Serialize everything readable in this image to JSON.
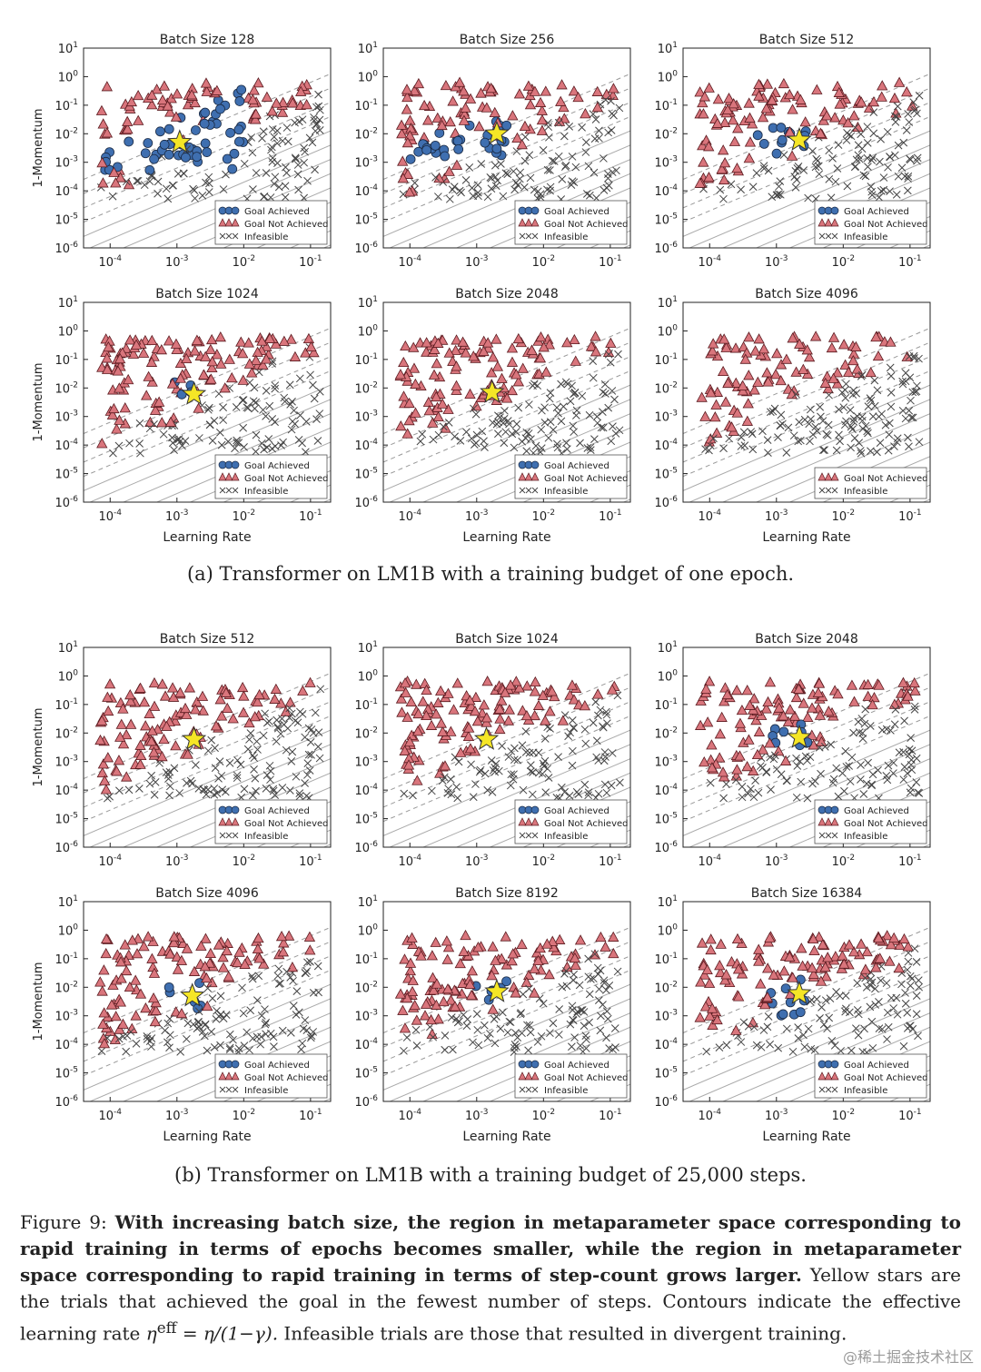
{
  "figure": {
    "caption_a": "(a) Transformer on LM1B with a training budget of one epoch.",
    "caption_b": "(b) Transformer on LM1B with a training budget of 25,000 steps.",
    "caption_label": "Figure 9:",
    "caption_bold": "With increasing batch size, the region in metaparameter space corresponding to rapid training in terms of epochs becomes smaller, while the region in metaparameter space corresponding to rapid training in terms of step-count grows larger.",
    "caption_rest1": "Yellow stars are the trials that achieved the goal in the fewest number of steps. Contours indicate the effective learning rate",
    "caption_formula": "η",
    "caption_formula_sup": "eff",
    "caption_formula_eq": "= η/(1−γ).",
    "caption_rest2": "Infeasible trials are those that resulted in divergent training.",
    "watermark": "@稀土掘金技术社区"
  },
  "chart_data": [
    {
      "type": "scatter",
      "panel": "a",
      "title": "Batch Size 128",
      "xlabel": "",
      "ylabel": "1-Momentum",
      "xscale": "log",
      "yscale": "log",
      "xlim": [
        4e-05,
        0.2
      ],
      "ylim": [
        1e-06,
        10
      ],
      "xticks": [
        "10-4",
        "10-3",
        "10-2",
        "10-1"
      ],
      "yticks": [
        "101",
        "100",
        "10-1",
        "10-2",
        "10-3",
        "10-4",
        "10-5",
        "10-6"
      ],
      "legend": [
        "Goal Achieved",
        "Goal Not Achieved",
        "Infeasible"
      ],
      "legend_loc": "lower-right",
      "goal_region": {
        "lr": [
          8e-05,
          0.01
        ],
        "mom": [
          0.0005,
          0.5
        ]
      },
      "star": {
        "lr": 0.0011,
        "mom": 0.005
      }
    },
    {
      "type": "scatter",
      "panel": "a",
      "title": "Batch Size 256",
      "xlabel": "",
      "ylabel": "",
      "xscale": "log",
      "yscale": "log",
      "xlim": [
        4e-05,
        0.2
      ],
      "ylim": [
        1e-06,
        10
      ],
      "xticks": [
        "10-4",
        "10-3",
        "10-2",
        "10-1"
      ],
      "yticks": [
        "101",
        "100",
        "10-1",
        "10-2",
        "10-3",
        "10-4",
        "10-5",
        "10-6"
      ],
      "legend": [
        "Goal Achieved",
        "Goal Not Achieved",
        "Infeasible"
      ],
      "legend_loc": "lower-right",
      "goal_region": {
        "lr": [
          0.0001,
          0.003
        ],
        "mom": [
          0.001,
          0.06
        ]
      },
      "star": {
        "lr": 0.002,
        "mom": 0.01
      }
    },
    {
      "type": "scatter",
      "panel": "a",
      "title": "Batch Size 512",
      "xlabel": "",
      "ylabel": "",
      "xscale": "log",
      "yscale": "log",
      "xlim": [
        4e-05,
        0.2
      ],
      "ylim": [
        1e-06,
        10
      ],
      "xticks": [
        "10-4",
        "10-3",
        "10-2",
        "10-1"
      ],
      "yticks": [
        "101",
        "100",
        "10-1",
        "10-2",
        "10-3",
        "10-4",
        "10-5",
        "10-6"
      ],
      "legend": [
        "Goal Achieved",
        "Goal Not Achieved",
        "Infeasible"
      ],
      "legend_loc": "lower-right",
      "goal_region": {
        "lr": [
          0.0003,
          0.003
        ],
        "mom": [
          0.002,
          0.02
        ]
      },
      "star": {
        "lr": 0.0022,
        "mom": 0.006
      }
    },
    {
      "type": "scatter",
      "panel": "a",
      "title": "Batch Size 1024",
      "xlabel": "Learning Rate",
      "ylabel": "1-Momentum",
      "xscale": "log",
      "yscale": "log",
      "xlim": [
        4e-05,
        0.2
      ],
      "ylim": [
        1e-06,
        10
      ],
      "xticks": [
        "10-4",
        "10-3",
        "10-2",
        "10-1"
      ],
      "yticks": [
        "101",
        "100",
        "10-1",
        "10-2",
        "10-3",
        "10-4",
        "10-5",
        "10-6"
      ],
      "legend": [
        "Goal Achieved",
        "Goal Not Achieved",
        "Infeasible"
      ],
      "legend_loc": "lower-right",
      "goal_region": {
        "lr": [
          0.0008,
          0.002
        ],
        "mom": [
          0.003,
          0.02
        ]
      },
      "star": {
        "lr": 0.0018,
        "mom": 0.006
      }
    },
    {
      "type": "scatter",
      "panel": "a",
      "title": "Batch Size 2048",
      "xlabel": "Learning Rate",
      "ylabel": "",
      "xscale": "log",
      "yscale": "log",
      "xlim": [
        4e-05,
        0.2
      ],
      "ylim": [
        1e-06,
        10
      ],
      "xticks": [
        "10-4",
        "10-3",
        "10-2",
        "10-1"
      ],
      "yticks": [
        "101",
        "100",
        "10-1",
        "10-2",
        "10-3",
        "10-4",
        "10-5",
        "10-6"
      ],
      "legend": [
        "Goal Achieved",
        "Goal Not Achieved",
        "Infeasible"
      ],
      "legend_loc": "lower-right",
      "goal_region": null,
      "star": {
        "lr": 0.0017,
        "mom": 0.007
      }
    },
    {
      "type": "scatter",
      "panel": "a",
      "title": "Batch Size 4096",
      "xlabel": "Learning Rate",
      "ylabel": "",
      "xscale": "log",
      "yscale": "log",
      "xlim": [
        4e-05,
        0.2
      ],
      "ylim": [
        1e-06,
        10
      ],
      "xticks": [
        "10-4",
        "10-3",
        "10-2",
        "10-1"
      ],
      "yticks": [
        "101",
        "100",
        "10-1",
        "10-2",
        "10-3",
        "10-4",
        "10-5",
        "10-6"
      ],
      "legend": [
        "Goal Not Achieved",
        "Infeasible"
      ],
      "legend_loc": "lower-right",
      "goal_region": null,
      "star": null
    },
    {
      "type": "scatter",
      "panel": "b",
      "title": "Batch Size 512",
      "xlabel": "",
      "ylabel": "1-Momentum",
      "xscale": "log",
      "yscale": "log",
      "xlim": [
        4e-05,
        0.2
      ],
      "ylim": [
        1e-06,
        10
      ],
      "xticks": [
        "10-4",
        "10-3",
        "10-2",
        "10-1"
      ],
      "yticks": [
        "101",
        "100",
        "10-1",
        "10-2",
        "10-3",
        "10-4",
        "10-5",
        "10-6"
      ],
      "legend": [
        "Goal Achieved",
        "Goal Not Achieved",
        "Infeasible"
      ],
      "legend_loc": "lower-right",
      "goal_region": null,
      "star": {
        "lr": 0.0018,
        "mom": 0.006
      }
    },
    {
      "type": "scatter",
      "panel": "b",
      "title": "Batch Size 1024",
      "xlabel": "",
      "ylabel": "",
      "xscale": "log",
      "yscale": "log",
      "xlim": [
        4e-05,
        0.2
      ],
      "ylim": [
        1e-06,
        10
      ],
      "xticks": [
        "10-4",
        "10-3",
        "10-2",
        "10-1"
      ],
      "yticks": [
        "101",
        "100",
        "10-1",
        "10-2",
        "10-3",
        "10-4",
        "10-5",
        "10-6"
      ],
      "legend": [
        "Goal Achieved",
        "Goal Not Achieved",
        "Infeasible"
      ],
      "legend_loc": "lower-right",
      "goal_region": {
        "lr": [
          0.0008,
          0.002
        ],
        "mom": [
          0.004,
          0.015
        ]
      },
      "star": {
        "lr": 0.0014,
        "mom": 0.006
      }
    },
    {
      "type": "scatter",
      "panel": "b",
      "title": "Batch Size 2048",
      "xlabel": "",
      "ylabel": "",
      "xscale": "log",
      "yscale": "log",
      "xlim": [
        4e-05,
        0.2
      ],
      "ylim": [
        1e-06,
        10
      ],
      "xticks": [
        "10-4",
        "10-3",
        "10-2",
        "10-1"
      ],
      "yticks": [
        "101",
        "100",
        "10-1",
        "10-2",
        "10-3",
        "10-4",
        "10-5",
        "10-6"
      ],
      "legend": [
        "Goal Achieved",
        "Goal Not Achieved",
        "Infeasible"
      ],
      "legend_loc": "lower-right",
      "goal_region": {
        "lr": [
          0.0008,
          0.003
        ],
        "mom": [
          0.003,
          0.02
        ]
      },
      "star": {
        "lr": 0.0022,
        "mom": 0.007
      }
    },
    {
      "type": "scatter",
      "panel": "b",
      "title": "Batch Size 4096",
      "xlabel": "Learning Rate",
      "ylabel": "1-Momentum",
      "xscale": "log",
      "yscale": "log",
      "xlim": [
        4e-05,
        0.2
      ],
      "ylim": [
        1e-06,
        10
      ],
      "xticks": [
        "10-4",
        "10-3",
        "10-2",
        "10-1"
      ],
      "yticks": [
        "101",
        "100",
        "10-1",
        "10-2",
        "10-3",
        "10-4",
        "10-5",
        "10-6"
      ],
      "legend": [
        "Goal Achieved",
        "Goal Not Achieved",
        "Infeasible"
      ],
      "legend_loc": "lower-right",
      "goal_region": {
        "lr": [
          0.0007,
          0.0025
        ],
        "mom": [
          0.0015,
          0.02
        ]
      },
      "star": {
        "lr": 0.0017,
        "mom": 0.005
      }
    },
    {
      "type": "scatter",
      "panel": "b",
      "title": "Batch Size 8192",
      "xlabel": "Learning Rate",
      "ylabel": "",
      "xscale": "log",
      "yscale": "log",
      "xlim": [
        4e-05,
        0.2
      ],
      "ylim": [
        1e-06,
        10
      ],
      "xticks": [
        "10-4",
        "10-3",
        "10-2",
        "10-1"
      ],
      "yticks": [
        "101",
        "100",
        "10-1",
        "10-2",
        "10-3",
        "10-4",
        "10-5",
        "10-6"
      ],
      "legend": [
        "Goal Achieved",
        "Goal Not Achieved",
        "Infeasible"
      ],
      "legend_loc": "lower-right",
      "goal_region": {
        "lr": [
          0.0009,
          0.003
        ],
        "mom": [
          0.002,
          0.02
        ]
      },
      "star": {
        "lr": 0.002,
        "mom": 0.007
      }
    },
    {
      "type": "scatter",
      "panel": "b",
      "title": "Batch Size 16384",
      "xlabel": "Learning Rate",
      "ylabel": "",
      "xscale": "log",
      "yscale": "log",
      "xlim": [
        4e-05,
        0.2
      ],
      "ylim": [
        1e-06,
        10
      ],
      "xticks": [
        "10-4",
        "10-3",
        "10-2",
        "10-1"
      ],
      "yticks": [
        "101",
        "100",
        "10-1",
        "10-2",
        "10-3",
        "10-4",
        "10-5",
        "10-6"
      ],
      "legend": [
        "Goal Achieved",
        "Goal Not Achieved",
        "Infeasible"
      ],
      "legend_loc": "lower-right",
      "goal_region": {
        "lr": [
          0.0008,
          0.003
        ],
        "mom": [
          0.001,
          0.02
        ]
      },
      "star": {
        "lr": 0.0022,
        "mom": 0.006
      }
    }
  ]
}
